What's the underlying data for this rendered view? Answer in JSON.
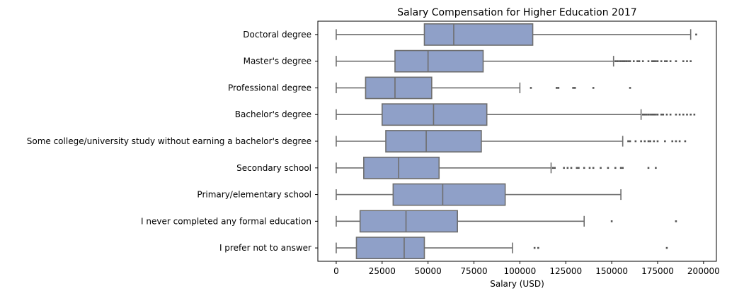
{
  "chart_data": {
    "type": "boxplot",
    "title": "Salary Compensation for Higher Education 2017",
    "xlabel": "Salary (USD)",
    "ylabel": "",
    "orientation": "horizontal",
    "xlim": [
      -10000,
      207000
    ],
    "xticks": [
      0,
      25000,
      50000,
      75000,
      100000,
      125000,
      150000,
      175000,
      200000
    ],
    "xtick_labels": [
      "0",
      "25000",
      "50000",
      "75000",
      "100000",
      "125000",
      "150000",
      "175000",
      "200000"
    ],
    "grid": false,
    "box_color": "#8fa0c8",
    "line_color": "#6e6e6e",
    "categories": [
      "Doctoral degree",
      "Master's degree",
      "Professional degree",
      "Bachelor's degree",
      "Some college/university study without earning a bachelor's degree",
      "Secondary school",
      "Primary/elementary school",
      "I never completed any formal education",
      "I prefer not to answer"
    ],
    "boxes": [
      {
        "whislo": 0,
        "q1": 48000,
        "med": 64000,
        "q3": 107000,
        "whishi": 193000,
        "fliers": [
          196000
        ]
      },
      {
        "whislo": 0,
        "q1": 32000,
        "med": 50000,
        "q3": 80000,
        "whishi": 151000,
        "fliers": [
          152000,
          153000,
          154000,
          155000,
          156000,
          157000,
          158000,
          159000,
          160000,
          162000,
          164000,
          165000,
          167000,
          170000,
          172000,
          173000,
          174000,
          175000,
          177000,
          179000,
          180000,
          182000,
          185000,
          189000,
          191000,
          193000
        ]
      },
      {
        "whislo": 0,
        "q1": 16000,
        "med": 32000,
        "q3": 52000,
        "whishi": 100000,
        "fliers": [
          106000,
          120000,
          121000,
          129000,
          130000,
          140000,
          160000
        ]
      },
      {
        "whislo": 0,
        "q1": 25000,
        "med": 53000,
        "q3": 82000,
        "whishi": 166000,
        "fliers": [
          167000,
          168000,
          169000,
          170000,
          171000,
          172000,
          173000,
          174000,
          175000,
          177000,
          178000,
          180000,
          182000,
          185000,
          187000,
          189000,
          191000,
          193000,
          195000
        ]
      },
      {
        "whislo": 0,
        "q1": 27000,
        "med": 49000,
        "q3": 79000,
        "whishi": 156000,
        "fliers": [
          159000,
          160000,
          163000,
          166000,
          168000,
          170000,
          171000,
          173000,
          175000,
          179000,
          183000,
          185000,
          187000,
          190000
        ]
      },
      {
        "whislo": 0,
        "q1": 15000,
        "med": 34000,
        "q3": 56000,
        "whishi": 117000,
        "fliers": [
          118000,
          119000,
          124000,
          126000,
          128000,
          131000,
          132000,
          135000,
          138000,
          140000,
          144000,
          148000,
          152000,
          155000,
          156000,
          170000,
          174000
        ]
      },
      {
        "whislo": 0,
        "q1": 31000,
        "med": 58000,
        "q3": 92000,
        "whishi": 155000,
        "fliers": []
      },
      {
        "whislo": 0,
        "q1": 13000,
        "med": 38000,
        "q3": 66000,
        "whishi": 135000,
        "fliers": [
          150000,
          185000
        ]
      },
      {
        "whislo": 0,
        "q1": 11000,
        "med": 37000,
        "q3": 48000,
        "whishi": 96000,
        "fliers": [
          108000,
          110000,
          180000
        ]
      }
    ]
  }
}
